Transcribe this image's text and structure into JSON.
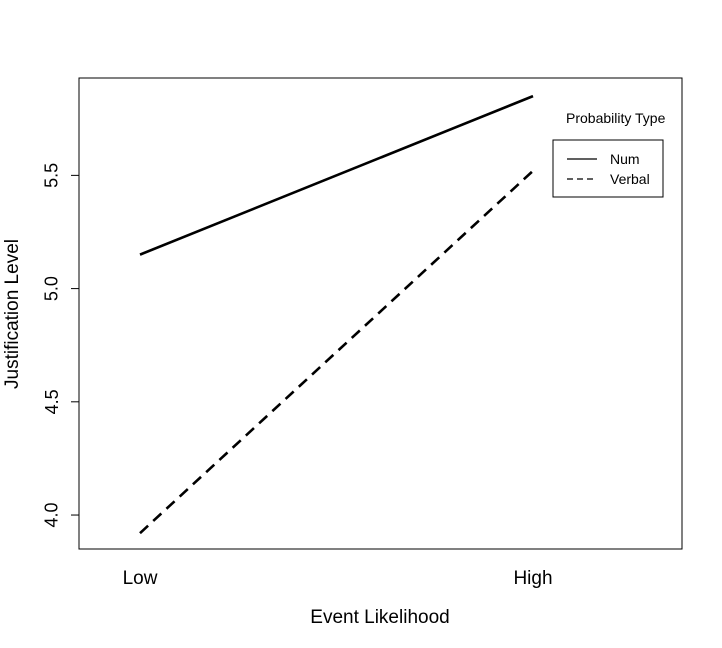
{
  "chart_data": {
    "type": "line",
    "title": "",
    "xlabel": "Event Likelihood",
    "ylabel": "Justification Level",
    "categories": [
      "Low",
      "High"
    ],
    "ylim": [
      3.85,
      5.93
    ],
    "yticks": [
      "4.0",
      "4.5",
      "5.0",
      "5.5"
    ],
    "grid": false,
    "series": [
      {
        "name": "Num",
        "values": [
          5.15,
          5.85
        ],
        "line_style": "solid",
        "color": "#000000"
      },
      {
        "name": "Verbal",
        "values": [
          3.92,
          5.52
        ],
        "line_style": "dashed",
        "color": "#000000"
      }
    ],
    "legend": {
      "title": "Probability Type",
      "placement": "top-right",
      "entries": [
        "Num",
        "Verbal"
      ]
    }
  }
}
